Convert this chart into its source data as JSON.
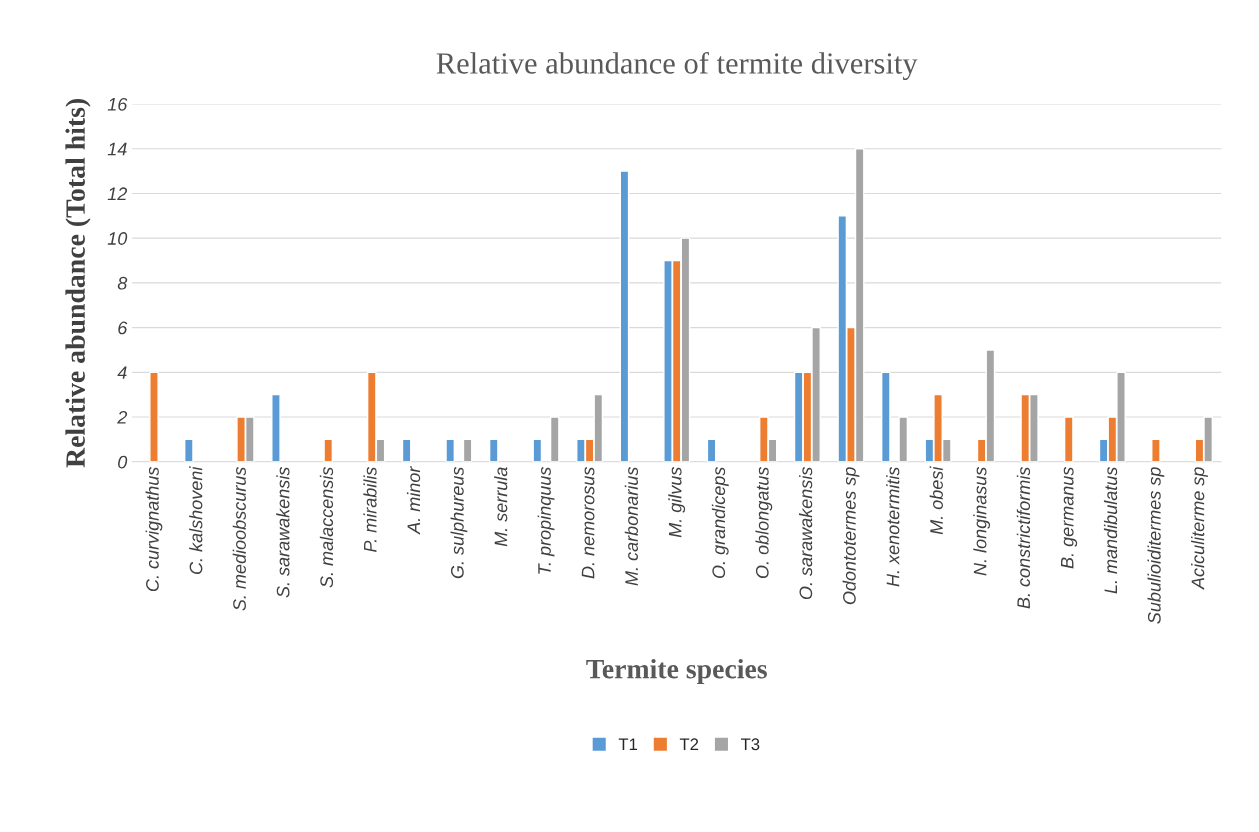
{
  "chart_data": {
    "type": "bar",
    "title": "Relative abundance of termite diversity",
    "xlabel": "Termite species",
    "ylabel": "Relative abundance (Total hits)",
    "categories": [
      "C. curvignathus",
      "C. kalshoveni",
      "S. medioobscurus",
      "S. sarawakensis",
      "S. malaccensis",
      "P. mirabilis",
      "A. minor",
      "G. sulphureus",
      "M. serrula",
      "T. propinquus",
      "D. nemorosus",
      "M. carbonarius",
      "M. gilvus",
      "O. grandiceps",
      "O. oblongatus",
      "O. sarawakensis",
      "Odontotermes sp",
      "H. xenotermitis",
      "M. obesi",
      "N. longinasus",
      "B. constrictiformis",
      "B. germanus",
      "L. mandibulatus",
      "Subulioiditermes sp",
      "Aciculiterme sp"
    ],
    "series": [
      {
        "name": "T1",
        "color": "#5b9bd5",
        "values": [
          null,
          1,
          null,
          3,
          null,
          null,
          1,
          1,
          1,
          1,
          1,
          13,
          9,
          1,
          null,
          4,
          11,
          4,
          1,
          null,
          null,
          null,
          1,
          null,
          null
        ]
      },
      {
        "name": "T2",
        "color": "#ed7d31",
        "values": [
          4,
          null,
          2,
          null,
          1,
          4,
          null,
          null,
          null,
          null,
          1,
          null,
          9,
          null,
          2,
          4,
          6,
          null,
          3,
          1,
          3,
          2,
          2,
          1,
          1
        ]
      },
      {
        "name": "T3",
        "color": "#a5a5a5",
        "values": [
          null,
          null,
          2,
          null,
          null,
          1,
          null,
          1,
          null,
          2,
          3,
          null,
          10,
          null,
          1,
          6,
          14,
          2,
          1,
          5,
          3,
          null,
          4,
          null,
          2
        ]
      }
    ],
    "ylim": [
      0,
      16
    ],
    "yticks": [
      0,
      2,
      4,
      6,
      8,
      10,
      12,
      14,
      16
    ],
    "grid": "y",
    "legend": "bottom"
  }
}
